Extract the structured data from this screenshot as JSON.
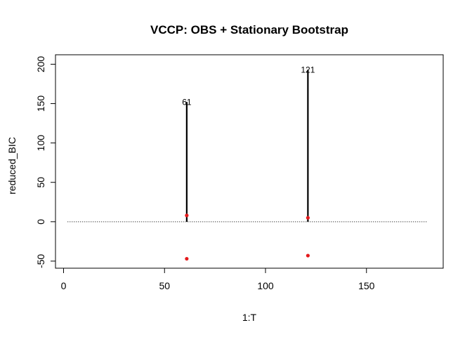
{
  "chart_data": {
    "type": "scatter",
    "title": "VCCP: OBS + Stationary Bootstrap",
    "xlabel": "1:T",
    "ylabel": "reduced_BIC",
    "xlim": [
      -4,
      188
    ],
    "ylim": [
      -59,
      212
    ],
    "x_ticks": [
      0,
      50,
      100,
      150
    ],
    "y_ticks": [
      -50,
      0,
      50,
      100,
      150,
      200
    ],
    "reference_line": {
      "y": 0,
      "x_from": 2,
      "x_to": 180,
      "style": "dotted"
    },
    "change_points": [
      {
        "x": 61,
        "label": "61",
        "y_top": 152,
        "y_bottom": 0
      },
      {
        "x": 121,
        "label": "121",
        "y_top": 193,
        "y_bottom": 0
      }
    ],
    "bootstrap_points": [
      {
        "x": 61,
        "y": 8
      },
      {
        "x": 61,
        "y": -47
      },
      {
        "x": 121,
        "y": 5
      },
      {
        "x": 121,
        "y": -43
      }
    ],
    "colors": {
      "points": "#e41a1c",
      "lines": "#000000",
      "axes": "#000000"
    }
  }
}
